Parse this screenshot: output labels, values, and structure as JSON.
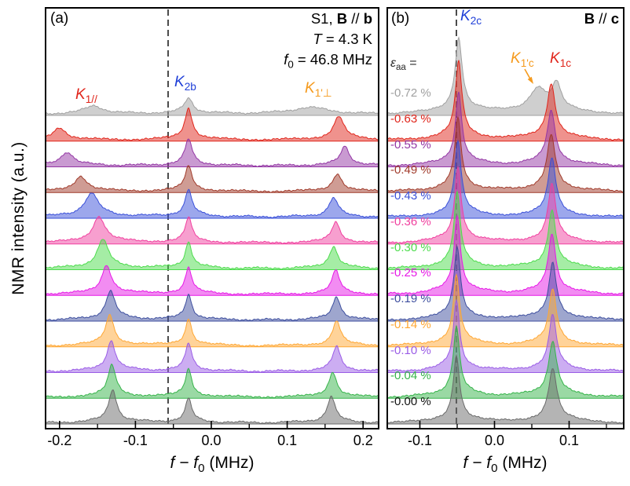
{
  "figure": {
    "y_axis_label": "NMR intensity (a.u.)",
    "x_axis_label": {
      "prefix_italic": "f − f",
      "sub": "0",
      "suffix": " (MHz)"
    }
  },
  "panel_a": {
    "tag": "(a)",
    "sample_note": {
      "prefix": "S1, ",
      "bold1": "B",
      "mid": " // ",
      "bold2": "b"
    },
    "temperature_note": {
      "italic": "T",
      "rest": " = 4.3 K"
    },
    "frequency_note": {
      "italic": "f",
      "sub": "0",
      "rest": " = 46.8 MHz"
    },
    "peak_labels": {
      "k1_parallel": {
        "base": "K",
        "sub": "1//",
        "color": "#e0251b"
      },
      "k2b": {
        "base": "K",
        "sub": "2b",
        "color": "#1f3fd8"
      },
      "k1_perp": {
        "base": "K",
        "sub": "1'⊥",
        "color": "#f59a1d"
      }
    }
  },
  "panel_b": {
    "tag": "(b)",
    "field_note": {
      "bold1": "B",
      "mid": " // ",
      "bold2": "c"
    },
    "strain_heading": {
      "italic": "ε",
      "sub": "aa",
      "rest": " ="
    },
    "peak_labels": {
      "k2c": {
        "base": "K",
        "sub": "2c",
        "color": "#1f3fd8"
      },
      "k1pc": {
        "base": "K",
        "sub": "1'c",
        "color": "#f59a1d"
      },
      "k1c": {
        "base": "K",
        "sub": "1c",
        "color": "#e0251b"
      }
    }
  },
  "chart_data": [
    {
      "type": "area",
      "panel": "a",
      "xlabel": "f − f0 (MHz)",
      "ylabel": "NMR intensity (a.u.)",
      "xlim": [
        -0.2195,
        0.2215
      ],
      "x_ticks": [
        {
          "value": -0.2,
          "label": "-0.2"
        },
        {
          "value": -0.1,
          "label": "-0.1"
        },
        {
          "value": 0.0,
          "label": "0.0"
        },
        {
          "value": 0.1,
          "label": "0.1"
        },
        {
          "value": 0.2,
          "label": "0.2"
        }
      ],
      "dashed_line_x": -0.057,
      "height_unit": "trace offset spacing",
      "series": [
        {
          "strain_label": "-0.72 %",
          "strain_pct": -0.72,
          "color": "#a0a0a0",
          "peaks": [
            {
              "center": -0.155,
              "fwhm": 0.03,
              "height": 0.3
            },
            {
              "center": -0.03,
              "fwhm": 0.014,
              "height": 0.55
            },
            {
              "center": 0.13,
              "fwhm": 0.06,
              "height": 0.25
            }
          ]
        },
        {
          "strain_label": "-0.63 %",
          "strain_pct": -0.63,
          "color": "#e0251b",
          "peaks": [
            {
              "center": -0.2,
              "fwhm": 0.02,
              "height": 0.45
            },
            {
              "center": -0.03,
              "fwhm": 0.011,
              "height": 1.15
            },
            {
              "center": 0.168,
              "fwhm": 0.016,
              "height": 0.85
            }
          ]
        },
        {
          "strain_label": "-0.55 %",
          "strain_pct": -0.55,
          "color": "#9336a4",
          "peaks": [
            {
              "center": -0.19,
              "fwhm": 0.02,
              "height": 0.5
            },
            {
              "center": -0.03,
              "fwhm": 0.011,
              "height": 0.95
            },
            {
              "center": 0.176,
              "fwhm": 0.014,
              "height": 0.7
            }
          ]
        },
        {
          "strain_label": "-0.49 %",
          "strain_pct": -0.49,
          "color": "#a03a2a",
          "peaks": [
            {
              "center": -0.172,
              "fwhm": 0.02,
              "height": 0.55
            },
            {
              "center": -0.03,
              "fwhm": 0.011,
              "height": 0.9
            },
            {
              "center": 0.166,
              "fwhm": 0.014,
              "height": 0.65
            }
          ]
        },
        {
          "strain_label": "-0.43 %",
          "strain_pct": -0.43,
          "color": "#3a50d9",
          "peaks": [
            {
              "center": -0.158,
              "fwhm": 0.022,
              "height": 0.85
            },
            {
              "center": -0.03,
              "fwhm": 0.011,
              "height": 0.95
            },
            {
              "center": 0.161,
              "fwhm": 0.014,
              "height": 0.7
            }
          ]
        },
        {
          "strain_label": "-0.36 %",
          "strain_pct": -0.36,
          "color": "#f0409f",
          "peaks": [
            {
              "center": -0.148,
              "fwhm": 0.019,
              "height": 0.95
            },
            {
              "center": -0.03,
              "fwhm": 0.01,
              "height": 0.9
            },
            {
              "center": 0.164,
              "fwhm": 0.013,
              "height": 0.75
            }
          ]
        },
        {
          "strain_label": "-0.30 %",
          "strain_pct": -0.3,
          "color": "#4cdc4c",
          "peaks": [
            {
              "center": -0.143,
              "fwhm": 0.017,
              "height": 1.05
            },
            {
              "center": -0.03,
              "fwhm": 0.01,
              "height": 0.95
            },
            {
              "center": 0.161,
              "fwhm": 0.013,
              "height": 0.8
            }
          ]
        },
        {
          "strain_label": "-0.25 %",
          "strain_pct": -0.25,
          "color": "#e619e6",
          "peaks": [
            {
              "center": -0.138,
              "fwhm": 0.015,
              "height": 1.05
            },
            {
              "center": -0.03,
              "fwhm": 0.01,
              "height": 0.95
            },
            {
              "center": 0.164,
              "fwhm": 0.012,
              "height": 0.85
            }
          ]
        },
        {
          "strain_label": "-0.19 %",
          "strain_pct": -0.19,
          "color": "#3d4e9e",
          "peaks": [
            {
              "center": -0.133,
              "fwhm": 0.014,
              "height": 1.05
            },
            {
              "center": -0.03,
              "fwhm": 0.01,
              "height": 0.9
            },
            {
              "center": 0.165,
              "fwhm": 0.012,
              "height": 0.85
            }
          ]
        },
        {
          "strain_label": "-0.14 %",
          "strain_pct": -0.14,
          "color": "#ffa733",
          "peaks": [
            {
              "center": -0.134,
              "fwhm": 0.013,
              "height": 1.1
            },
            {
              "center": -0.03,
              "fwhm": 0.01,
              "height": 0.95
            },
            {
              "center": 0.165,
              "fwhm": 0.012,
              "height": 0.9
            }
          ]
        },
        {
          "strain_label": "-0.10 %",
          "strain_pct": -0.1,
          "color": "#9a5ce6",
          "peaks": [
            {
              "center": -0.132,
              "fwhm": 0.013,
              "height": 1.1
            },
            {
              "center": -0.03,
              "fwhm": 0.01,
              "height": 1.0
            },
            {
              "center": 0.165,
              "fwhm": 0.012,
              "height": 0.9
            }
          ]
        },
        {
          "strain_label": "-0.04 %",
          "strain_pct": -0.04,
          "color": "#36b44a",
          "peaks": [
            {
              "center": -0.131,
              "fwhm": 0.012,
              "height": 1.15
            },
            {
              "center": -0.03,
              "fwhm": 0.01,
              "height": 1.0
            },
            {
              "center": 0.16,
              "fwhm": 0.012,
              "height": 0.92
            }
          ]
        },
        {
          "strain_label": "-0.00 %",
          "strain_pct": 0.0,
          "color": "#6a6a6a",
          "label_color": "#111111",
          "peaks": [
            {
              "center": -0.13,
              "fwhm": 0.012,
              "height": 1.2
            },
            {
              "center": -0.03,
              "fwhm": 0.01,
              "height": 0.85
            },
            {
              "center": 0.158,
              "fwhm": 0.012,
              "height": 0.95
            }
          ]
        }
      ]
    },
    {
      "type": "area",
      "panel": "b",
      "xlabel": "f − f0 (MHz)",
      "ylabel": "NMR intensity (a.u.)",
      "xlim": [
        -0.1447,
        0.1742
      ],
      "x_ticks": [
        {
          "value": -0.1,
          "label": "-0.1"
        },
        {
          "value": 0.0,
          "label": "0.0"
        },
        {
          "value": 0.1,
          "label": "0.1"
        }
      ],
      "dashed_line_x": -0.051,
      "height_unit": "trace offset spacing",
      "series": [
        {
          "strain_label": "-0.72 %",
          "strain_pct": -0.72,
          "color": "#a0a0a0",
          "peaks": [
            {
              "center": -0.048,
              "fwhm": 0.011,
              "height": 2.7
            },
            {
              "center": 0.058,
              "fwhm": 0.026,
              "height": 0.85
            },
            {
              "center": 0.083,
              "fwhm": 0.015,
              "height": 0.95
            }
          ]
        },
        {
          "strain_label": "-0.63 %",
          "strain_pct": -0.63,
          "color": "#e0251b",
          "peaks": [
            {
              "center": -0.048,
              "fwhm": 0.01,
              "height": 2.8
            },
            {
              "center": 0.076,
              "fwhm": 0.013,
              "height": 2.0
            }
          ]
        },
        {
          "strain_label": "-0.55 %",
          "strain_pct": -0.55,
          "color": "#9336a4",
          "peaks": [
            {
              "center": -0.048,
              "fwhm": 0.01,
              "height": 2.6
            },
            {
              "center": 0.076,
              "fwhm": 0.013,
              "height": 1.95
            }
          ]
        },
        {
          "strain_label": "-0.49 %",
          "strain_pct": -0.49,
          "color": "#a03a2a",
          "peaks": [
            {
              "center": -0.049,
              "fwhm": 0.01,
              "height": 2.6
            },
            {
              "center": 0.076,
              "fwhm": 0.013,
              "height": 2.0
            }
          ]
        },
        {
          "strain_label": "-0.43 %",
          "strain_pct": -0.43,
          "color": "#3a50d9",
          "peaks": [
            {
              "center": -0.049,
              "fwhm": 0.01,
              "height": 2.7
            },
            {
              "center": 0.077,
              "fwhm": 0.012,
              "height": 2.1
            }
          ]
        },
        {
          "strain_label": "-0.36 %",
          "strain_pct": -0.36,
          "color": "#f0409f",
          "peaks": [
            {
              "center": -0.049,
              "fwhm": 0.01,
              "height": 2.7
            },
            {
              "center": 0.077,
              "fwhm": 0.012,
              "height": 2.1
            }
          ]
        },
        {
          "strain_label": "-0.30 %",
          "strain_pct": -0.3,
          "color": "#4cdc4c",
          "peaks": [
            {
              "center": -0.05,
              "fwhm": 0.01,
              "height": 2.7
            },
            {
              "center": 0.077,
              "fwhm": 0.012,
              "height": 2.1
            }
          ]
        },
        {
          "strain_label": "-0.25 %",
          "strain_pct": -0.25,
          "color": "#e619e6",
          "peaks": [
            {
              "center": -0.05,
              "fwhm": 0.01,
              "height": 2.8
            },
            {
              "center": 0.077,
              "fwhm": 0.012,
              "height": 2.15
            }
          ]
        },
        {
          "strain_label": "-0.19 %",
          "strain_pct": -0.19,
          "color": "#3d4e9e",
          "peaks": [
            {
              "center": -0.05,
              "fwhm": 0.01,
              "height": 2.6
            },
            {
              "center": 0.078,
              "fwhm": 0.012,
              "height": 2.05
            }
          ]
        },
        {
          "strain_label": "-0.14 %",
          "strain_pct": -0.14,
          "color": "#ffa733",
          "peaks": [
            {
              "center": -0.051,
              "fwhm": 0.01,
              "height": 2.5
            },
            {
              "center": 0.078,
              "fwhm": 0.012,
              "height": 2.0
            }
          ]
        },
        {
          "strain_label": "-0.10 %",
          "strain_pct": -0.1,
          "color": "#9a5ce6",
          "peaks": [
            {
              "center": -0.051,
              "fwhm": 0.01,
              "height": 2.5
            },
            {
              "center": 0.078,
              "fwhm": 0.012,
              "height": 2.0
            }
          ]
        },
        {
          "strain_label": "-0.04 %",
          "strain_pct": -0.04,
          "color": "#36b44a",
          "peaks": [
            {
              "center": -0.051,
              "fwhm": 0.01,
              "height": 2.5
            },
            {
              "center": 0.078,
              "fwhm": 0.013,
              "height": 2.0
            }
          ]
        },
        {
          "strain_label": "-0.00 %",
          "strain_pct": 0.0,
          "color": "#6a6a6a",
          "label_color": "#111111",
          "peaks": [
            {
              "center": -0.051,
              "fwhm": 0.01,
              "height": 2.4
            },
            {
              "center": 0.078,
              "fwhm": 0.013,
              "height": 1.95
            }
          ]
        }
      ]
    }
  ]
}
